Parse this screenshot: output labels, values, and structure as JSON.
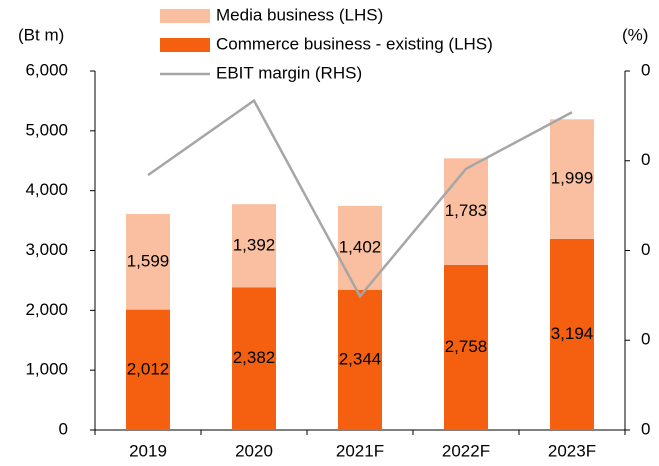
{
  "chart_data": {
    "type": "bar",
    "stacked": true,
    "y_label": "(Bt m)",
    "y2_label": "(%)",
    "categories": [
      "2019",
      "2020",
      "2021F",
      "2022F",
      "2023F"
    ],
    "series": [
      {
        "name": "Commerce business - existing (LHS)",
        "color": "#f4600f",
        "values": [
          2012,
          2382,
          2344,
          2758,
          3194
        ],
        "value_labels": [
          "2,012",
          "2,382",
          "2,344",
          "2,758",
          "3,194"
        ]
      },
      {
        "name": "Media business (LHS)",
        "color": "#f9bfa0",
        "values": [
          1599,
          1392,
          1402,
          1783,
          1999
        ],
        "value_labels": [
          "1,599",
          "1,392",
          "1,402",
          "1,783",
          "1,999"
        ]
      },
      {
        "name": "EBIT margin (RHS)",
        "type": "line",
        "axis": "y2",
        "color": "#a6a6a6",
        "values": [
          0.284,
          0.367,
          0.149,
          0.291,
          0.354
        ]
      }
    ],
    "ylim": [
      0,
      6000
    ],
    "yticks": [
      0,
      {
        "value": 1000,
        "label": "1,000"
      },
      {
        "value": 2000,
        "label": "2,000"
      },
      {
        "value": 3000,
        "label": "3,000"
      },
      {
        "value": 4000,
        "label": "4,000"
      },
      {
        "value": 5000,
        "label": "5,000"
      },
      {
        "value": 6000,
        "label": "6,000"
      }
    ],
    "y2lim": [
      0,
      0.4
    ],
    "y2ticks": [
      0,
      {
        "value": 0.1,
        "label": "0"
      },
      {
        "value": 0.2,
        "label": "0"
      },
      {
        "value": 0.3,
        "label": "0"
      },
      {
        "value": 0.4,
        "label": "0"
      }
    ],
    "grid": false,
    "legend": "top"
  }
}
